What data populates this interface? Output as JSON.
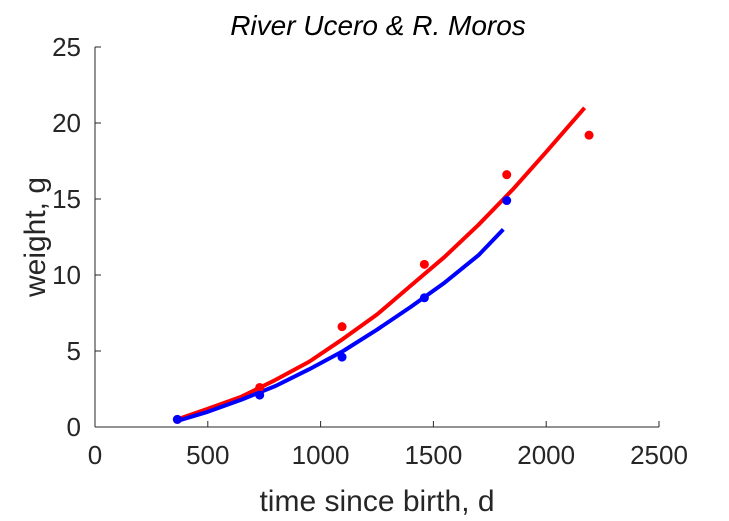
{
  "chart_data": {
    "type": "scatter",
    "title": "River Ucero & R. Moros",
    "xlabel": "time since birth, d",
    "ylabel": "weight, g",
    "xlim": [
      0,
      2500
    ],
    "ylim": [
      0,
      25
    ],
    "xticks": [
      0,
      500,
      1000,
      1500,
      2000,
      2500
    ],
    "yticks": [
      0,
      5,
      10,
      15,
      20,
      25
    ],
    "grid": false,
    "legend": "none",
    "series": [
      {
        "color": "#ff0000",
        "kind": "points",
        "x": [
          365,
          730,
          1095,
          1460,
          1825,
          2190
        ],
        "y": [
          0.5,
          2.6,
          6.6,
          10.7,
          16.6,
          19.2
        ]
      },
      {
        "color": "#0000ff",
        "kind": "points",
        "x": [
          365,
          730,
          1095,
          1460,
          1825
        ],
        "y": [
          0.5,
          2.1,
          4.6,
          8.5,
          14.9
        ]
      },
      {
        "color": "#ff0000",
        "kind": "line",
        "x": [
          365,
          500,
          650,
          800,
          950,
          1100,
          1250,
          1400,
          1550,
          1700,
          1850,
          2000,
          2170
        ],
        "y": [
          0.5,
          1.2,
          2.0,
          3.1,
          4.3,
          5.8,
          7.4,
          9.3,
          11.2,
          13.3,
          15.6,
          18.1,
          21.0
        ]
      },
      {
        "color": "#0000ff",
        "kind": "line",
        "x": [
          365,
          500,
          650,
          800,
          950,
          1100,
          1250,
          1400,
          1550,
          1700,
          1810
        ],
        "y": [
          0.4,
          1.0,
          1.8,
          2.7,
          3.8,
          5.0,
          6.4,
          7.9,
          9.5,
          11.3,
          13.0
        ]
      }
    ]
  }
}
